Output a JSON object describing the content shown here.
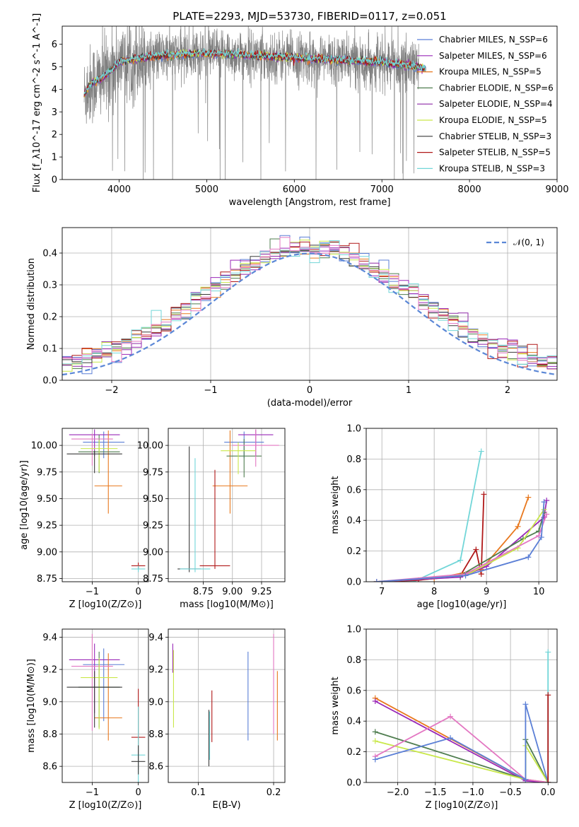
{
  "title": "PLATE=2293, MJD=53730, FIBERID=0117, z=0.051",
  "colors": {
    "chabrier_miles": "#5b7fd6",
    "salpeter_miles": "#9a28b8",
    "kroupa_miles": "#e8781e",
    "chabrier_elodie": "#4f7d4f",
    "salpeter_elodie": "#8e28a6",
    "kroupa_elodie": "#c9e84a",
    "chabrier_stelib": "#3a3a3a",
    "salpeter_stelib": "#b01818",
    "kroupa_stelib": "#72d6d8",
    "pink": "#e377c2",
    "data_gray": "#808080",
    "gauss": "#5b87d6"
  },
  "chart_data": [
    {
      "panel": "spectrum",
      "type": "line",
      "xlabel": "wavelength [Angstrom, rest frame]",
      "ylabel": "Flux [f_λ10^-17 erg cm^-2 s^-1 A^-1]",
      "xlim": [
        3350,
        9000
      ],
      "ylim": [
        0,
        6.8
      ],
      "xticks": [
        4000,
        5000,
        6000,
        7000,
        8000,
        9000
      ],
      "yticks": [
        0,
        1,
        2,
        3,
        4,
        5,
        6
      ],
      "legend_position": "top-right",
      "legend": [
        {
          "label": "Chabrier MILES, N_SSP=6",
          "color": "#5b7fd6"
        },
        {
          "label": "Salpeter MILES, N_SSP=6",
          "color": "#9a28b8"
        },
        {
          "label": "Kroupa MILES, N_SSP=5",
          "color": "#e8781e"
        },
        {
          "label": "Chabrier ELODIE, N_SSP=6",
          "color": "#4f7d4f"
        },
        {
          "label": "Salpeter ELODIE, N_SSP=4",
          "color": "#8e28a6"
        },
        {
          "label": "Kroupa ELODIE, N_SSP=5",
          "color": "#c9e84a"
        },
        {
          "label": "Chabrier STELIB, N_SSP=3",
          "color": "#3a3a3a"
        },
        {
          "label": "Salpeter STELIB, N_SSP=5",
          "color": "#b01818"
        },
        {
          "label": "Kroupa STELIB, N_SSP=3",
          "color": "#72d6d8"
        }
      ],
      "data_range": [
        3600,
        7420
      ],
      "model_continuum": [
        [
          3600,
          3.7
        ],
        [
          3650,
          4.1
        ],
        [
          3700,
          4.3
        ],
        [
          3800,
          4.5
        ],
        [
          3900,
          4.8
        ],
        [
          4000,
          5.2
        ],
        [
          4100,
          5.3
        ],
        [
          4300,
          5.4
        ],
        [
          4500,
          5.5
        ],
        [
          5000,
          5.6
        ],
        [
          5500,
          5.5
        ],
        [
          6000,
          5.4
        ],
        [
          6500,
          5.3
        ],
        [
          7000,
          5.2
        ],
        [
          7420,
          5.0
        ]
      ],
      "model_extension": [
        [
          7420,
          5.0
        ],
        [
          7450,
          4.95
        ],
        [
          7500,
          4.9
        ]
      ]
    },
    {
      "panel": "residuals",
      "type": "histogram",
      "xlabel": "(data-model)/error",
      "ylabel": "Normed distribution",
      "xlim": [
        -2.5,
        2.5
      ],
      "ylim": [
        0,
        0.48
      ],
      "xticks": [
        -2,
        -1,
        0,
        1,
        2
      ],
      "yticks": [
        0.0,
        0.1,
        0.2,
        0.3,
        0.4
      ],
      "grid": true,
      "legend": [
        {
          "label": "𝒩(0, 1)",
          "style": "dashed",
          "color": "#5b87d6"
        }
      ],
      "bin_width": 0.1,
      "bins_from": -2.5,
      "n_bins": 50
    },
    {
      "panel": "age_vs_Z",
      "type": "errorbar",
      "xlabel": "Z [log10(Z/Z⊙)]",
      "ylabel": "age  [log10(age/yr)]",
      "xlim": [
        -1.65,
        0.22
      ],
      "ylim": [
        8.72,
        10.16
      ],
      "xticks": [
        -1,
        0
      ],
      "yticks": [
        8.75,
        9.0,
        9.25,
        9.5,
        9.75,
        10.0
      ],
      "grid": true,
      "points": [
        {
          "x": -0.75,
          "y": 10.03,
          "xerr": [
            0.45,
            0.45
          ],
          "yerr": [
            0.15,
            0.1
          ],
          "color": "#5b7fd6"
        },
        {
          "x": -0.95,
          "y": 10.1,
          "xerr": [
            0.55,
            0.55
          ],
          "yerr": [
            0.2,
            0.05
          ],
          "color": "#9a28b8"
        },
        {
          "x": -0.65,
          "y": 9.62,
          "xerr": [
            0.3,
            0.3
          ],
          "yerr": [
            0.26,
            0.52
          ],
          "color": "#e8781e"
        },
        {
          "x": -0.85,
          "y": 9.94,
          "xerr": [
            0.45,
            0.45
          ],
          "yerr": [
            0.2,
            0.16
          ],
          "color": "#4f7d4f"
        },
        {
          "x": -1.0,
          "y": 10.06,
          "xerr": [
            0.45,
            0.45
          ],
          "yerr": [
            0.25,
            0.05
          ],
          "color": "#e377c2"
        },
        {
          "x": -0.85,
          "y": 9.97,
          "xerr": [
            0.4,
            0.4
          ],
          "yerr": [
            0.22,
            0.08
          ],
          "color": "#c9e84a"
        },
        {
          "x": -0.95,
          "y": 9.92,
          "xerr": [
            0.6,
            0.6
          ],
          "yerr": [
            0.18,
            0.03
          ],
          "color": "#3a3a3a"
        },
        {
          "x": 0.0,
          "y": 8.87,
          "xerr": [
            0.15,
            0.15
          ],
          "yerr": [
            0.03,
            0.03
          ],
          "color": "#b01818"
        },
        {
          "x": 0.0,
          "y": 8.84,
          "xerr": [
            0.15,
            0.15
          ],
          "yerr": [
            0.03,
            0.03
          ],
          "color": "#72d6d8"
        }
      ]
    },
    {
      "panel": "age_vs_mass",
      "type": "errorbar",
      "xlabel": "mass [log10(M/M⊙)]",
      "ylabel": "",
      "xlim": [
        8.45,
        9.45
      ],
      "ylim": [
        8.72,
        10.16
      ],
      "xticks": [
        8.75,
        9.0,
        9.25
      ],
      "yticks": [
        8.75,
        9.0,
        9.25,
        9.5,
        9.75,
        10.0
      ],
      "grid": true,
      "points": [
        {
          "x": 9.1,
          "y": 10.03,
          "xerr": [
            0.17,
            0.17
          ],
          "yerr": [
            0.15,
            0.1
          ],
          "color": "#5b7fd6"
        },
        {
          "x": 9.2,
          "y": 10.1,
          "xerr": [
            0.15,
            0.15
          ],
          "yerr": [
            0.2,
            0.05
          ],
          "color": "#9a28b8"
        },
        {
          "x": 8.98,
          "y": 9.62,
          "xerr": [
            0.15,
            0.15
          ],
          "yerr": [
            0.26,
            0.52
          ],
          "color": "#e8781e"
        },
        {
          "x": 9.1,
          "y": 9.9,
          "xerr": [
            0.15,
            0.15
          ],
          "yerr": [
            0.2,
            0.16
          ],
          "color": "#4f7d4f"
        },
        {
          "x": 9.2,
          "y": 10.0,
          "xerr": [
            0.2,
            0.2
          ],
          "yerr": [
            0.2,
            0.15
          ],
          "color": "#e377c2"
        },
        {
          "x": 9.05,
          "y": 9.95,
          "xerr": [
            0.15,
            0.15
          ],
          "yerr": [
            0.22,
            0.08
          ],
          "color": "#c9e84a"
        },
        {
          "x": 8.63,
          "y": 8.84,
          "xerr": [
            0.1,
            0.1
          ],
          "yerr": [
            0.03,
            1.15
          ],
          "color": "#3a3a3a"
        },
        {
          "x": 8.85,
          "y": 8.87,
          "xerr": [
            0.13,
            0.13
          ],
          "yerr": [
            0.03,
            0.9
          ],
          "color": "#b01818"
        },
        {
          "x": 8.68,
          "y": 8.84,
          "xerr": [
            0.13,
            0.13
          ],
          "yerr": [
            0.03,
            1.04
          ],
          "color": "#72d6d8"
        }
      ]
    },
    {
      "panel": "weight_vs_age",
      "type": "line",
      "xlabel": "age  [log10(age/yr)]",
      "ylabel": "mass weight",
      "xlim": [
        6.7,
        10.35
      ],
      "ylim": [
        0,
        1.0
      ],
      "xticks": [
        7,
        8,
        9,
        10
      ],
      "yticks": [
        0.0,
        0.2,
        0.4,
        0.6,
        0.8,
        1.0
      ],
      "grid": true,
      "series": [
        {
          "color": "#72d6d8",
          "x": [
            6.9,
            7.6,
            8.5,
            8.9
          ],
          "y": [
            0.0,
            0.0,
            0.14,
            0.85
          ]
        },
        {
          "color": "#b01818",
          "x": [
            6.9,
            7.7,
            8.5,
            8.8,
            8.9,
            8.95
          ],
          "y": [
            0.0,
            0.01,
            0.04,
            0.21,
            0.05,
            0.57
          ]
        },
        {
          "color": "#e8781e",
          "x": [
            6.9,
            8.0,
            8.9,
            9.6,
            9.8
          ],
          "y": [
            0.0,
            0.02,
            0.08,
            0.36,
            0.55
          ]
        },
        {
          "color": "#9a28b8",
          "x": [
            6.9,
            8.5,
            9.0,
            10.1,
            10.15
          ],
          "y": [
            0.0,
            0.03,
            0.1,
            0.42,
            0.53
          ]
        },
        {
          "color": "#4f7d4f",
          "x": [
            6.9,
            8.5,
            9.7,
            10.0,
            10.1
          ],
          "y": [
            0.0,
            0.04,
            0.28,
            0.33,
            0.45
          ]
        },
        {
          "color": "#c9e84a",
          "x": [
            6.9,
            8.6,
            9.6,
            10.1
          ],
          "y": [
            0.0,
            0.04,
            0.22,
            0.47
          ]
        },
        {
          "color": "#e377c2",
          "x": [
            6.9,
            8.6,
            10.0,
            10.15
          ],
          "y": [
            0.0,
            0.05,
            0.3,
            0.44
          ]
        },
        {
          "color": "#5b7fd6",
          "x": [
            6.9,
            8.6,
            9.8,
            10.05,
            10.1
          ],
          "y": [
            0.0,
            0.04,
            0.16,
            0.29,
            0.52
          ]
        }
      ]
    },
    {
      "panel": "mass_vs_Z",
      "type": "errorbar",
      "xlabel": "Z [log10(Z/Z⊙)]",
      "ylabel": "mass [log10(M/M⊙)]",
      "xlim": [
        -1.65,
        0.22
      ],
      "ylim": [
        8.5,
        9.45
      ],
      "xticks": [
        -1,
        0
      ],
      "yticks": [
        8.6,
        8.8,
        9.0,
        9.2,
        9.4
      ],
      "grid": true,
      "points": [
        {
          "x": -0.75,
          "y": 9.23,
          "xerr": [
            0.45,
            0.45
          ],
          "yerr": [
            0.35,
            0.1
          ],
          "color": "#5b7fd6"
        },
        {
          "x": -0.95,
          "y": 9.26,
          "xerr": [
            0.55,
            0.55
          ],
          "yerr": [
            0.33,
            0.1
          ],
          "color": "#9a28b8"
        },
        {
          "x": -0.65,
          "y": 8.9,
          "xerr": [
            0.3,
            0.3
          ],
          "yerr": [
            0.14,
            0.4
          ],
          "color": "#e8781e"
        },
        {
          "x": -0.85,
          "y": 9.09,
          "xerr": [
            0.45,
            0.45
          ],
          "yerr": [
            0.25,
            0.22
          ],
          "color": "#4f7d4f"
        },
        {
          "x": -1.0,
          "y": 9.22,
          "xerr": [
            0.45,
            0.45
          ],
          "yerr": [
            0.4,
            0.2
          ],
          "color": "#e377c2"
        },
        {
          "x": -0.85,
          "y": 9.15,
          "xerr": [
            0.4,
            0.4
          ],
          "yerr": [
            0.32,
            0.12
          ],
          "color": "#c9e84a"
        },
        {
          "x": -0.95,
          "y": 9.09,
          "xerr": [
            0.6,
            0.6
          ],
          "yerr": [
            0.25,
            0.1
          ],
          "color": "#3a3a3a"
        },
        {
          "x": 0.0,
          "y": 8.78,
          "xerr": [
            0.15,
            0.15
          ],
          "yerr": [
            0.2,
            0.3
          ],
          "color": "#b01818"
        },
        {
          "x": 0.0,
          "y": 8.67,
          "xerr": [
            0.15,
            0.15
          ],
          "yerr": [
            0.2,
            0.3
          ],
          "color": "#72d6d8"
        },
        {
          "x": 0.0,
          "y": 8.63,
          "xerr": [
            0.15,
            0.15
          ],
          "yerr": [
            0.08,
            0.1
          ],
          "color": "#3a3a3a"
        }
      ]
    },
    {
      "panel": "mass_vs_EBV",
      "type": "errorbar",
      "xlabel": "E(B-V)",
      "ylabel": "",
      "xlim": [
        0.06,
        0.215
      ],
      "ylim": [
        8.5,
        9.45
      ],
      "xticks": [
        0.1,
        0.2
      ],
      "yticks": [
        8.6,
        8.8,
        9.0,
        9.2,
        9.4
      ],
      "grid": true,
      "points": [
        {
          "x": 0.166,
          "y": 9.03,
          "yerr": [
            0.27,
            0.28
          ],
          "color": "#5b7fd6"
        },
        {
          "x": 0.066,
          "y": 9.26,
          "yerr": [
            0.08,
            0.1
          ],
          "color": "#9a28b8"
        },
        {
          "x": 0.205,
          "y": 8.98,
          "yerr": [
            0.22,
            0.21
          ],
          "color": "#e8781e"
        },
        {
          "x": 0.118,
          "y": 8.95,
          "yerr": [
            0.2,
            0.12
          ],
          "color": "#b01818"
        },
        {
          "x": 0.114,
          "y": 8.75,
          "yerr": [
            0.15,
            0.2
          ],
          "color": "#3a3a3a"
        },
        {
          "x": 0.2,
          "y": 9.15,
          "yerr": [
            0.35,
            0.27
          ],
          "color": "#e377c2"
        },
        {
          "x": 0.067,
          "y": 9.08,
          "yerr": [
            0.24,
            0.24
          ],
          "color": "#c9e84a"
        },
        {
          "x": 0.115,
          "y": 8.74,
          "yerr": [
            0.1,
            0.2
          ],
          "color": "#72d6d8"
        }
      ]
    },
    {
      "panel": "weight_vs_Z",
      "type": "line",
      "xlabel": "Z [log10(Z/Z⊙)]",
      "ylabel": "mass weight",
      "xlim": [
        -2.42,
        0.12
      ],
      "ylim": [
        0,
        1.0
      ],
      "xticks": [
        -2.0,
        -1.5,
        -1.0,
        -0.5,
        0.0
      ],
      "yticks": [
        0.0,
        0.2,
        0.4,
        0.6,
        0.8,
        1.0
      ],
      "grid": true,
      "series": [
        {
          "color": "#e8781e",
          "x": [
            -2.3,
            -0.3,
            0.0
          ],
          "y": [
            0.55,
            0.02,
            0.0
          ]
        },
        {
          "color": "#9a28b8",
          "x": [
            -2.3,
            -0.3,
            0.0
          ],
          "y": [
            0.53,
            0.01,
            0.0
          ]
        },
        {
          "color": "#4f7d4f",
          "x": [
            -2.3,
            -0.3,
            -0.3,
            0.0
          ],
          "y": [
            0.33,
            0.02,
            0.28,
            0.0
          ]
        },
        {
          "color": "#c9e84a",
          "x": [
            -2.3,
            -0.3,
            -0.3,
            0.0
          ],
          "y": [
            0.27,
            0.02,
            0.24,
            0.0
          ]
        },
        {
          "color": "#e377c2",
          "x": [
            -2.3,
            -1.3,
            -0.3,
            0.0
          ],
          "y": [
            0.17,
            0.43,
            0.02,
            0.0
          ]
        },
        {
          "color": "#5b7fd6",
          "x": [
            -2.3,
            -1.3,
            -0.3,
            -0.3,
            0.0
          ],
          "y": [
            0.15,
            0.29,
            0.02,
            0.51,
            0.0
          ]
        },
        {
          "color": "#72d6d8",
          "x": [
            0.0,
            0.0
          ],
          "y": [
            0.0,
            0.85
          ]
        },
        {
          "color": "#b01818",
          "x": [
            0.0,
            0.0
          ],
          "y": [
            0.0,
            0.57
          ]
        }
      ]
    }
  ]
}
